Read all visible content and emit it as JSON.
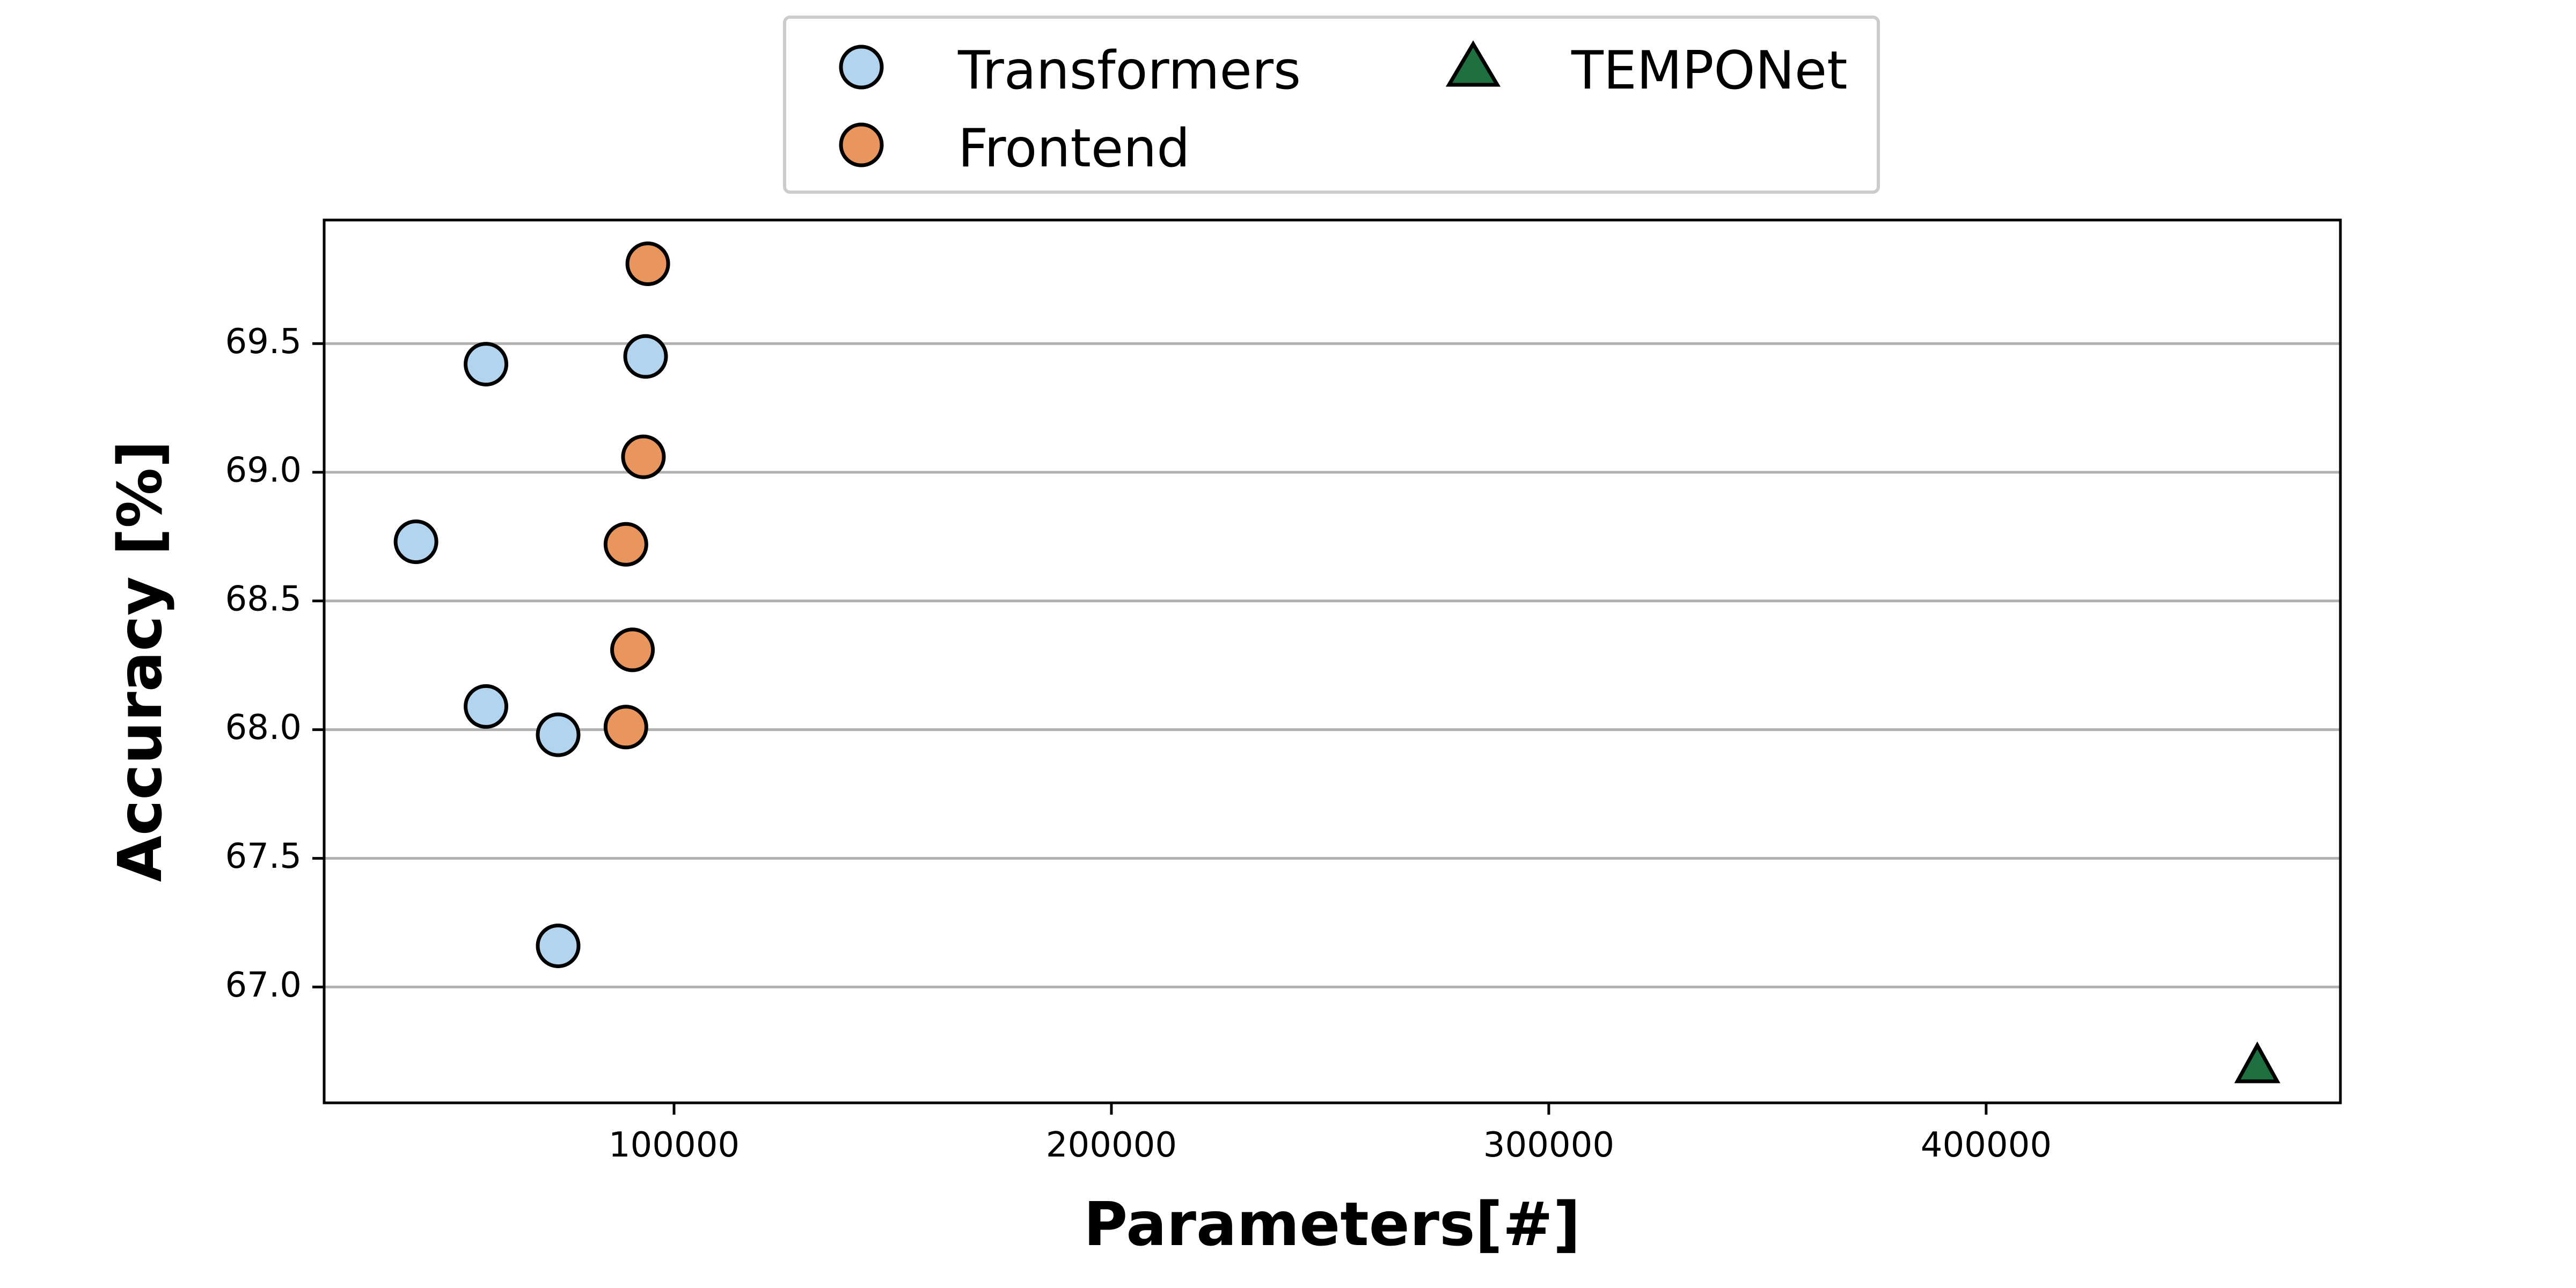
{
  "chart_data": {
    "type": "scatter",
    "xlabel": "Parameters[#]",
    "ylabel": "Accuracy [%]",
    "xlim": [
      20000,
      481000
    ],
    "ylim": [
      66.55,
      69.98
    ],
    "x_ticks": [
      100000,
      200000,
      300000,
      400000
    ],
    "y_ticks": [
      67.0,
      67.5,
      68.0,
      68.5,
      69.0,
      69.5
    ],
    "grid": "horizontal",
    "legend_position": "top-center (outside plot)",
    "series": [
      {
        "name": "Transformers",
        "marker": "circle",
        "color": "#b3d4ee",
        "points": [
          {
            "x": 41000,
            "y": 68.73
          },
          {
            "x": 57000,
            "y": 69.42
          },
          {
            "x": 57000,
            "y": 68.09
          },
          {
            "x": 73500,
            "y": 67.98
          },
          {
            "x": 73500,
            "y": 67.16
          },
          {
            "x": 93500,
            "y": 69.45
          }
        ]
      },
      {
        "name": "Frontend",
        "marker": "circle",
        "color": "#e8965e",
        "points": [
          {
            "x": 94000,
            "y": 69.81
          },
          {
            "x": 93000,
            "y": 69.06
          },
          {
            "x": 89000,
            "y": 68.72
          },
          {
            "x": 90500,
            "y": 68.31
          },
          {
            "x": 89000,
            "y": 68.01
          }
        ]
      },
      {
        "name": "TEMPONet",
        "marker": "triangle",
        "color": "#1e7040",
        "points": [
          {
            "x": 462000,
            "y": 66.69
          }
        ]
      }
    ]
  }
}
